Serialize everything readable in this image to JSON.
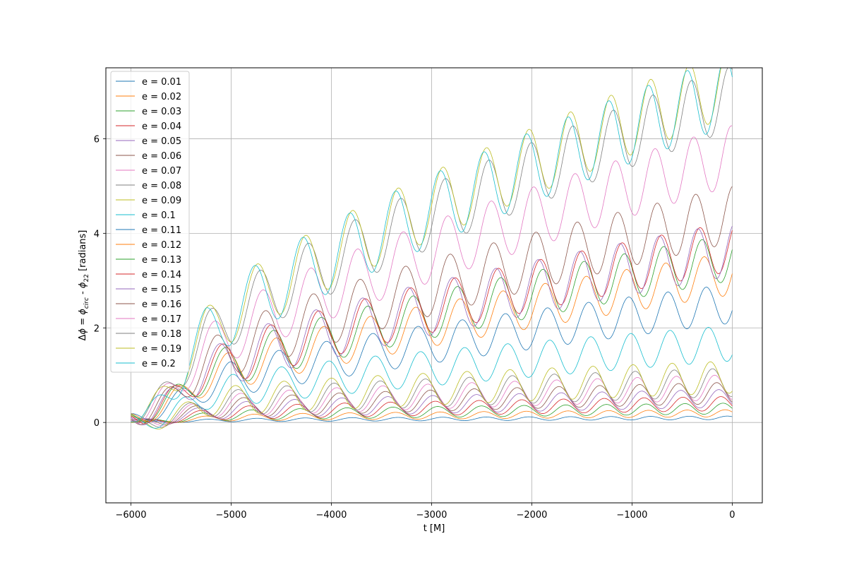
{
  "chart_data": {
    "type": "line",
    "title": "",
    "xlabel": "t [M]",
    "ylabel_parts": {
      "delta": "Δ",
      "phi": "ϕ",
      "eq": " = ",
      "phi1": "ϕ",
      "sub1": "circ",
      "minus": " - ",
      "phi2": "ϕ",
      "sub2": "22",
      "units": " [radians]"
    },
    "xlim": [
      -6250,
      300
    ],
    "ylim": [
      -1.7,
      7.5
    ],
    "xticks": [
      -6000,
      -5000,
      -4000,
      -3000,
      -2000,
      -1000,
      0
    ],
    "xtick_labels": [
      "−6000",
      "−5000",
      "−4000",
      "−3000",
      "−2000",
      "−1000",
      "0"
    ],
    "yticks": [
      0,
      2,
      4,
      6
    ],
    "ytick_labels": [
      "0",
      "2",
      "4",
      "6"
    ],
    "grid": true,
    "legend_position": "upper-left",
    "x_start": -6000,
    "x_end": 0,
    "series": [
      {
        "name": "e = 0.01",
        "color": "#1f77b4",
        "amp": 0.075,
        "trend_end": 0.06,
        "dip": -0.02
      },
      {
        "name": "e = 0.02",
        "color": "#ff7f0e",
        "amp": 0.15,
        "trend_end": 0.12,
        "dip": -0.05
      },
      {
        "name": "e = 0.03",
        "color": "#2ca02c",
        "amp": 0.23,
        "trend_end": 0.18,
        "dip": -0.08
      },
      {
        "name": "e = 0.04",
        "color": "#d62728",
        "amp": 0.3,
        "trend_end": 0.25,
        "dip": -0.12
      },
      {
        "name": "e = 0.05",
        "color": "#9467bd",
        "amp": 0.38,
        "trend_end": 0.32,
        "dip": -0.16
      },
      {
        "name": "e = 0.06",
        "color": "#8c564b",
        "amp": 0.45,
        "trend_end": 0.4,
        "dip": -0.22
      },
      {
        "name": "e = 0.07",
        "color": "#e377c2",
        "amp": 0.53,
        "trend_end": 0.48,
        "dip": -0.28
      },
      {
        "name": "e = 0.08",
        "color": "#7f7f7f",
        "amp": 0.6,
        "trend_end": 0.55,
        "dip": -0.35
      },
      {
        "name": "e = 0.09",
        "color": "#bcbd22",
        "amp": 0.68,
        "trend_end": 0.62,
        "dip": -0.42
      },
      {
        "name": "e = 0.1",
        "color": "#17becf",
        "amp": 0.75,
        "trend_end": 1.3,
        "dip": -0.5
      },
      {
        "name": "e = 0.11",
        "color": "#1f77b4",
        "amp": 0.83,
        "trend_end": 2.1,
        "dip": -0.3
      },
      {
        "name": "e = 0.12",
        "color": "#ff7f0e",
        "amp": 0.9,
        "trend_end": 2.7,
        "dip": -0.4
      },
      {
        "name": "e = 0.13",
        "color": "#2ca02c",
        "amp": 0.98,
        "trend_end": 3.0,
        "dip": -0.45
      },
      {
        "name": "e = 0.14",
        "color": "#d62728",
        "amp": 1.05,
        "trend_end": 3.2,
        "dip": -0.55
      },
      {
        "name": "e = 0.15",
        "color": "#9467bd",
        "amp": 1.13,
        "trend_end": 3.1,
        "dip": -0.6
      },
      {
        "name": "e = 0.16",
        "color": "#8c564b",
        "amp": 1.2,
        "trend_end": 3.8,
        "dip": -0.7
      },
      {
        "name": "e = 0.17",
        "color": "#e377c2",
        "amp": 1.28,
        "trend_end": 5.0,
        "dip": -0.8
      },
      {
        "name": "e = 0.18",
        "color": "#7f7f7f",
        "amp": 1.35,
        "trend_end": 6.2,
        "dip": -0.95
      },
      {
        "name": "e = 0.19",
        "color": "#bcbd22",
        "amp": 1.43,
        "trend_end": 6.5,
        "dip": -1.1
      },
      {
        "name": "e = 0.2",
        "color": "#17becf",
        "amp": 1.5,
        "trend_end": 6.3,
        "dip": -1.3
      }
    ]
  }
}
